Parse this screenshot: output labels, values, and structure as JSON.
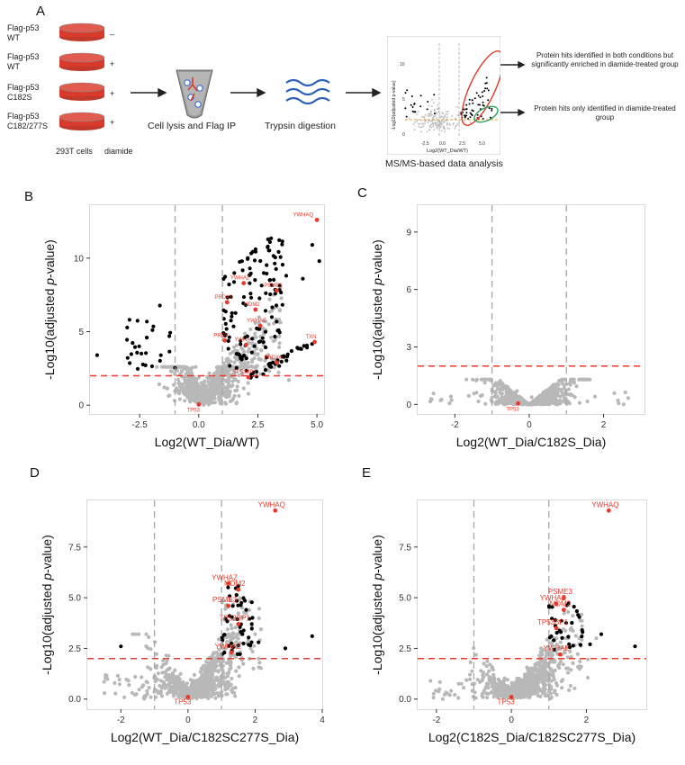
{
  "panel_a": {
    "label": "A",
    "conditions": [
      {
        "line1": "Flag-p53",
        "line2": "WT",
        "diamide": "–"
      },
      {
        "line1": "Flag-p53",
        "line2": "WT",
        "diamide": "+"
      },
      {
        "line1": "Flag-p53",
        "line2": "C182S",
        "diamide": "+"
      },
      {
        "line1": "Flag-p53",
        "line2": "C182/277S",
        "diamide": "+"
      }
    ],
    "cells_label": "293T cells",
    "diamide_label": "diamide",
    "step1": "Cell lysis and Flag IP",
    "step2": "Trypsin digestion",
    "step3": "MS/MS-based data analysis",
    "annotation_red": "Protein hits identified in both conditions but significantly enriched in diamide-treated group",
    "annotation_green": "Protein hits only identified in diamide-treated group",
    "mini_xlabel": "Log2(WT_Dia/WT)",
    "mini_ylabel": "-Log10(adjusted p-value)",
    "mini_xticks": [
      "-2.5",
      "0.0",
      "2.5",
      "5.0"
    ],
    "mini_yticks": [
      "0",
      "5",
      "10"
    ]
  },
  "chart_data": [
    {
      "panel": "B",
      "type": "scatter",
      "xlabel": "Log2(WT_Dia/WT)",
      "ylabel_pre": "-Log10(adjusted ",
      "ylabel_ital": "p",
      "ylabel_post": "-value)",
      "xlim": [
        -4.6,
        5.3
      ],
      "ylim": [
        -0.6,
        13.6
      ],
      "xticks": [
        -2.5,
        0.0,
        2.5,
        5.0
      ],
      "xtick_labels": [
        "-2.5",
        "0.0",
        "2.5",
        "5.0"
      ],
      "yticks": [
        0,
        5,
        10
      ],
      "ytick_labels": [
        "0",
        "5",
        "10"
      ],
      "vlines": [
        -1,
        1
      ],
      "hline": 2,
      "highlighted": [
        {
          "label": "YWHAQ",
          "x": 5.0,
          "y": 12.6
        },
        {
          "label": "YWHAZ",
          "x": 1.9,
          "y": 8.3
        },
        {
          "label": "PSME3",
          "x": 3.3,
          "y": 7.8
        },
        {
          "label": "PRDX1",
          "x": 1.2,
          "y": 7.0
        },
        {
          "label": "MDM2",
          "x": 2.4,
          "y": 6.5
        },
        {
          "label": "YWHAE",
          "x": 2.6,
          "y": 5.4
        },
        {
          "label": "PRDX",
          "x": 1.1,
          "y": 4.4
        },
        {
          "label": "YWHA",
          "x": 2.0,
          "y": 4.1
        },
        {
          "label": "TXN",
          "x": 4.9,
          "y": 4.3
        },
        {
          "label": "PRDX6",
          "x": 3.3,
          "y": 2.9
        },
        {
          "label": "TP53BP1",
          "x": 2.1,
          "y": 1.9
        },
        {
          "label": "TP53",
          "x": 0.0,
          "y": 0.05
        }
      ]
    },
    {
      "panel": "C",
      "type": "scatter",
      "xlabel": "Log2(WT_Dia/C182S_Dia)",
      "ylabel_pre": "-Log10(adjusted ",
      "ylabel_ital": "p",
      "ylabel_post": "-value)",
      "xlim": [
        -3.0,
        3.1
      ],
      "ylim": [
        -0.5,
        10.4
      ],
      "xticks": [
        -2,
        0,
        2
      ],
      "xtick_labels": [
        "-2",
        "0",
        "2"
      ],
      "yticks": [
        0,
        3,
        6,
        9
      ],
      "ytick_labels": [
        "0",
        "3",
        "6",
        "9"
      ],
      "vlines": [
        -1,
        1
      ],
      "hline": 2,
      "highlighted": [
        {
          "label": "TP53",
          "x": -0.3,
          "y": 0.05
        }
      ]
    },
    {
      "panel": "D",
      "type": "scatter",
      "xlabel": "Log2(WT_Dia/C182SC277S_Dia)",
      "ylabel_pre": "-Log10(adjusted ",
      "ylabel_ital": "p",
      "ylabel_post": "-value)",
      "xlim": [
        -3.0,
        4.0
      ],
      "ylim": [
        -0.5,
        9.8
      ],
      "xticks": [
        -2,
        0,
        2,
        4
      ],
      "xtick_labels": [
        "-2",
        "0",
        "2",
        "4"
      ],
      "yticks": [
        0.0,
        2.5,
        5.0,
        7.5
      ],
      "ytick_labels": [
        "0.0",
        "2.5",
        "5.0",
        "7.5"
      ],
      "vlines": [
        -1,
        1
      ],
      "hline": 2,
      "highlighted": [
        {
          "label": "YWHAQ",
          "x": 2.6,
          "y": 9.3
        },
        {
          "label": "YWHAZ",
          "x": 1.2,
          "y": 5.7
        },
        {
          "label": "MDM2",
          "x": 1.5,
          "y": 5.4
        },
        {
          "label": "PSME3",
          "x": 1.2,
          "y": 4.6
        },
        {
          "label": "TP53BP1",
          "x": 1.5,
          "y": 3.7
        },
        {
          "label": "YWHAE",
          "x": 1.3,
          "y": 2.3
        },
        {
          "label": "TP53",
          "x": 0.0,
          "y": 0.1
        }
      ]
    },
    {
      "panel": "E",
      "type": "scatter",
      "xlabel": "Log2(C182S_Dia/C182SC277S_Dia)",
      "ylabel_pre": "-Log10(adjusted ",
      "ylabel_ital": "p",
      "ylabel_post": "-value)",
      "xlim": [
        -2.5,
        3.6
      ],
      "ylim": [
        -0.5,
        9.8
      ],
      "xticks": [
        -2,
        0,
        2
      ],
      "xtick_labels": [
        "-2",
        "0",
        "2"
      ],
      "yticks": [
        0.0,
        2.5,
        5.0,
        7.5
      ],
      "ytick_labels": [
        "0.0",
        "2.5",
        "5.0",
        "7.5"
      ],
      "vlines": [
        -1,
        1
      ],
      "hline": 2,
      "highlighted": [
        {
          "label": "YWHAQ",
          "x": 2.6,
          "y": 9.3
        },
        {
          "label": "PSME3",
          "x": 1.4,
          "y": 5.0
        },
        {
          "label": "YWHAZ",
          "x": 1.2,
          "y": 4.7
        },
        {
          "label": "MDM2",
          "x": 1.4,
          "y": 4.4
        },
        {
          "label": "TP53BP1",
          "x": 1.2,
          "y": 3.5
        },
        {
          "label": "YWHAE",
          "x": 1.3,
          "y": 2.2
        },
        {
          "label": "TP53",
          "x": 0.0,
          "y": 0.1
        }
      ]
    }
  ],
  "colors": {
    "grey": "#b8b8b8",
    "black": "#000000",
    "red": "#e8392a",
    "dashed_grey": "#a6a6a6",
    "frame": "#d9d9d9",
    "dish_red": "#d93a2c",
    "blue_wave": "#2b5fb8",
    "green_ellipse": "#2aa05a"
  }
}
